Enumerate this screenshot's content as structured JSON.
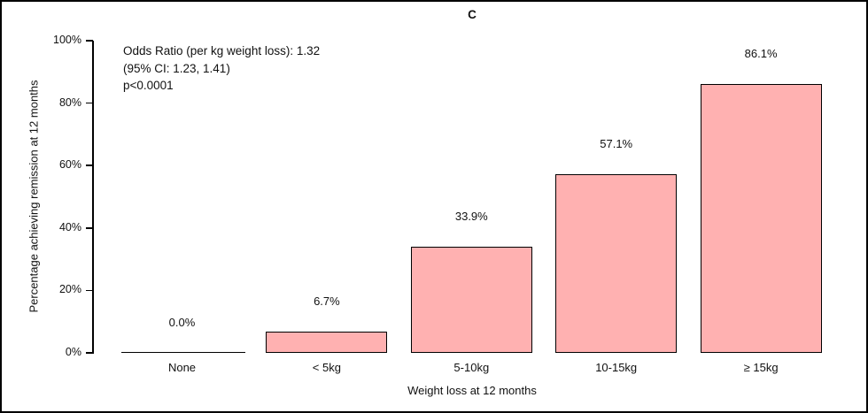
{
  "figure": {
    "title": "C"
  },
  "chart_data": {
    "type": "bar",
    "title": "C",
    "categories": [
      "None",
      "< 5kg",
      "5-10kg",
      "10-15kg",
      "≥ 15kg"
    ],
    "values": [
      0.0,
      6.7,
      33.9,
      57.1,
      86.1
    ],
    "bar_labels": [
      "0.0%",
      "6.7%",
      "33.9%",
      "57.1%",
      "86.1%"
    ],
    "xlabel": "Weight loss at 12 months",
    "ylabel": "Percentage achieving remission at 12 months",
    "ylim": [
      0,
      100
    ],
    "yticks": [
      0,
      20,
      40,
      60,
      80,
      100
    ],
    "ytick_labels": [
      "0%",
      "20%",
      "40%",
      "60%",
      "80%",
      "100%"
    ],
    "annotation": [
      "Odds Ratio (per kg weight loss): 1.32",
      "(95% CI: 1.23, 1.41)",
      "p<0.0001"
    ],
    "bar_fill": "#ffb1b1",
    "bar_border": "#000000",
    "grid": false,
    "legend": false
  }
}
